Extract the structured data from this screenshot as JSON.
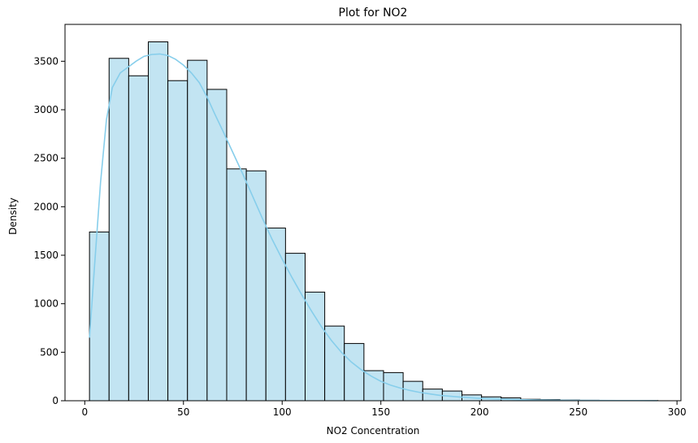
{
  "chart_data": {
    "type": "bar",
    "title": "Plot for NO2",
    "xlabel": "NO2 Concentration",
    "ylabel": "Density",
    "xlim": [
      -10,
      302
    ],
    "ylim": [
      0,
      3880
    ],
    "x_ticks": [
      0,
      50,
      100,
      150,
      200,
      250,
      300
    ],
    "y_ticks": [
      0,
      500,
      1000,
      1500,
      2000,
      2500,
      3000,
      3500
    ],
    "bin_start": 2.4,
    "bin_width": 9.93,
    "values": [
      1740,
      3530,
      3350,
      3700,
      3300,
      3510,
      3210,
      2390,
      2370,
      1780,
      1520,
      1120,
      770,
      590,
      310,
      290,
      200,
      120,
      100,
      60,
      40,
      30,
      15,
      12,
      8,
      5,
      4,
      3,
      2
    ],
    "bar_color": "#c2e4f2",
    "kde_color": "#87ceeb",
    "kde": {
      "x": [
        2.4,
        5,
        8,
        11,
        14,
        18,
        22,
        26,
        30,
        34,
        38,
        42,
        46,
        50,
        54,
        58,
        62,
        66,
        70,
        75,
        80,
        85,
        90,
        95,
        100,
        105,
        110,
        115,
        120,
        125,
        130,
        135,
        140,
        145,
        150,
        155,
        160,
        165,
        170,
        175,
        180,
        190,
        200,
        210,
        220,
        230,
        240,
        250,
        260,
        270,
        280,
        290
      ],
      "y": [
        650,
        1400,
        2250,
        2900,
        3230,
        3380,
        3440,
        3500,
        3550,
        3570,
        3575,
        3560,
        3520,
        3460,
        3380,
        3280,
        3130,
        2950,
        2780,
        2560,
        2340,
        2110,
        1880,
        1660,
        1460,
        1270,
        1090,
        920,
        760,
        620,
        500,
        400,
        320,
        255,
        200,
        160,
        130,
        105,
        85,
        70,
        55,
        38,
        25,
        17,
        11,
        7,
        5,
        4,
        3,
        2,
        2,
        1
      ]
    }
  }
}
